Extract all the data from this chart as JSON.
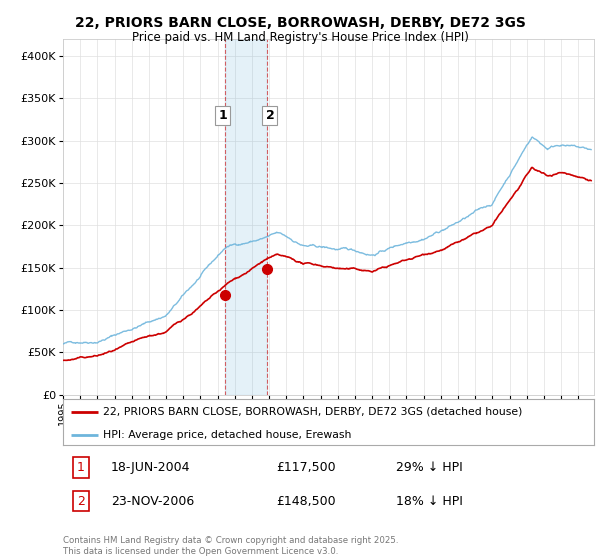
{
  "title": "22, PRIORS BARN CLOSE, BORROWASH, DERBY, DE72 3GS",
  "subtitle": "Price paid vs. HM Land Registry's House Price Index (HPI)",
  "legend_line1": "22, PRIORS BARN CLOSE, BORROWASH, DERBY, DE72 3GS (detached house)",
  "legend_line2": "HPI: Average price, detached house, Erewash",
  "sale1_date": "18-JUN-2004",
  "sale1_price": "£117,500",
  "sale1_hpi": "29% ↓ HPI",
  "sale2_date": "23-NOV-2006",
  "sale2_price": "£148,500",
  "sale2_hpi": "18% ↓ HPI",
  "footer": "Contains HM Land Registry data © Crown copyright and database right 2025.\nThis data is licensed under the Open Government Licence v3.0.",
  "hpi_color": "#6eb5dc",
  "price_color": "#cc0000",
  "ylim_min": 0,
  "ylim_max": 420000,
  "xlim_min": 1995.0,
  "xlim_max": 2025.92,
  "sale1_year": 2004.46,
  "sale2_year": 2006.9,
  "sale1_value": 117500,
  "sale2_value": 148500,
  "hpi_seed": 42,
  "price_seed": 42
}
